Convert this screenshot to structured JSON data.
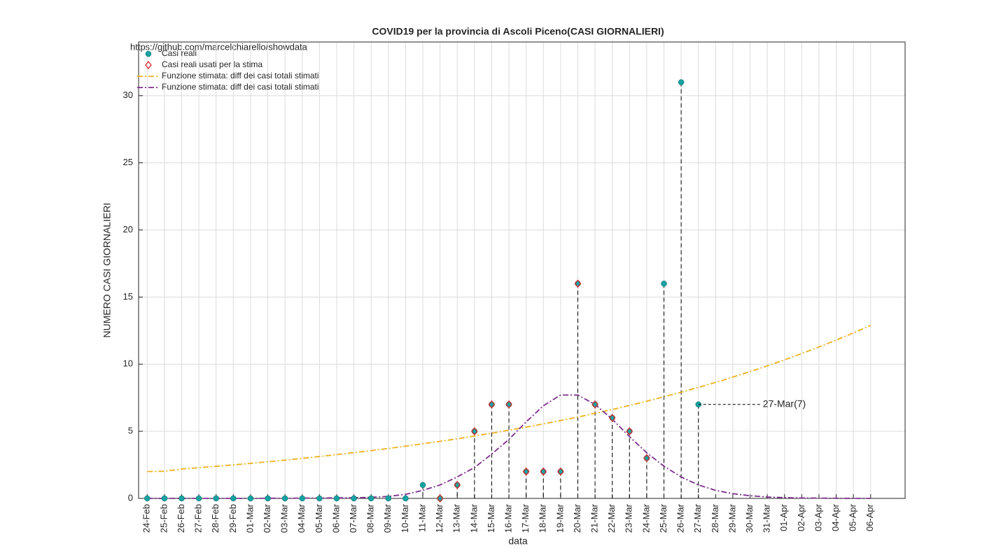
{
  "chart_data": {
    "type": "line",
    "title": "COVID19 per la provincia di Ascoli Piceno(CASI GIORNALIERI)",
    "source": "https://github.com/marcelchiarello/showdata",
    "xlabel": "data",
    "ylabel": "NUMERO CASI GIORNALIERI",
    "categories": [
      "24-Feb",
      "25-Feb",
      "26-Feb",
      "27-Feb",
      "28-Feb",
      "29-Feb",
      "01-Mar",
      "02-Mar",
      "03-Mar",
      "04-Mar",
      "05-Mar",
      "06-Mar",
      "07-Mar",
      "08-Mar",
      "09-Mar",
      "10-Mar",
      "11-Mar",
      "12-Mar",
      "13-Mar",
      "14-Mar",
      "15-Mar",
      "16-Mar",
      "17-Mar",
      "18-Mar",
      "19-Mar",
      "20-Mar",
      "21-Mar",
      "22-Mar",
      "23-Mar",
      "24-Mar",
      "25-Mar",
      "26-Mar",
      "27-Mar",
      "28-Mar",
      "29-Mar",
      "30-Mar",
      "31-Mar",
      "01-Apr",
      "02-Apr",
      "03-Apr",
      "04-Apr",
      "05-Apr",
      "06-Apr"
    ],
    "xlim": [
      -0.5,
      44
    ],
    "ylim": [
      0,
      34
    ],
    "yticks": [
      0,
      5,
      10,
      15,
      20,
      25,
      30
    ],
    "grid": true,
    "legend": "upper left",
    "series": [
      {
        "name": "Casi reali",
        "color": "#17a2a2",
        "marker": "circle",
        "line": "none",
        "stems": true,
        "values": [
          0,
          0,
          0,
          0,
          0,
          0,
          0,
          0,
          0,
          0,
          0,
          0,
          0,
          0,
          0,
          0,
          1,
          0,
          1,
          5,
          7,
          7,
          2,
          2,
          2,
          16,
          7,
          6,
          5,
          3,
          16,
          31,
          7,
          null,
          null,
          null,
          null,
          null,
          null,
          null,
          null,
          null,
          null
        ]
      },
      {
        "name": "Casi reali usati per la stima",
        "color": "#e02020",
        "marker": "diamond",
        "line": "none",
        "values": [
          null,
          null,
          null,
          null,
          null,
          null,
          null,
          null,
          null,
          null,
          null,
          null,
          null,
          null,
          null,
          null,
          null,
          0,
          1,
          5,
          7,
          7,
          2,
          2,
          2,
          16,
          7,
          6,
          5,
          3,
          null,
          null,
          null,
          null,
          null,
          null,
          null,
          null,
          null,
          null,
          null,
          null,
          null
        ]
      },
      {
        "name": "Funzione stimata: diff dei casi totali stimati",
        "color": "#edb120",
        "marker": "none",
        "line": "dashdot",
        "values": [
          2.0,
          2.02,
          2.19,
          2.29,
          2.39,
          2.5,
          2.61,
          2.73,
          2.85,
          2.98,
          3.12,
          3.26,
          3.41,
          3.56,
          3.72,
          3.89,
          4.07,
          4.25,
          4.44,
          4.65,
          4.86,
          5.08,
          5.31,
          5.55,
          5.8,
          6.06,
          6.34,
          6.62,
          6.92,
          7.24,
          7.57,
          7.91,
          8.27,
          8.64,
          9.04,
          9.45,
          9.87,
          10.32,
          10.79,
          11.28,
          11.79,
          12.33,
          12.89
        ]
      },
      {
        "name": "Funzione stimata: diff dei casi totali stimati",
        "color": "#7e2f8e",
        "marker": "none",
        "line": "dashdot",
        "values": [
          0,
          0,
          0,
          0,
          0,
          0,
          0,
          0.01,
          0.01,
          0.02,
          0.03,
          0.04,
          0.05,
          0.08,
          0.15,
          0.3,
          0.6,
          1.0,
          1.6,
          2.3,
          3.3,
          4.4,
          5.7,
          6.9,
          7.7,
          7.7,
          7.0,
          5.9,
          4.6,
          3.4,
          2.4,
          1.6,
          1.0,
          0.6,
          0.35,
          0.2,
          0.1,
          0.06,
          0.03,
          0.02,
          0.01,
          0,
          0
        ]
      }
    ],
    "annotation": {
      "text": "27-Mar(7)",
      "series": 0,
      "index": 32
    }
  }
}
